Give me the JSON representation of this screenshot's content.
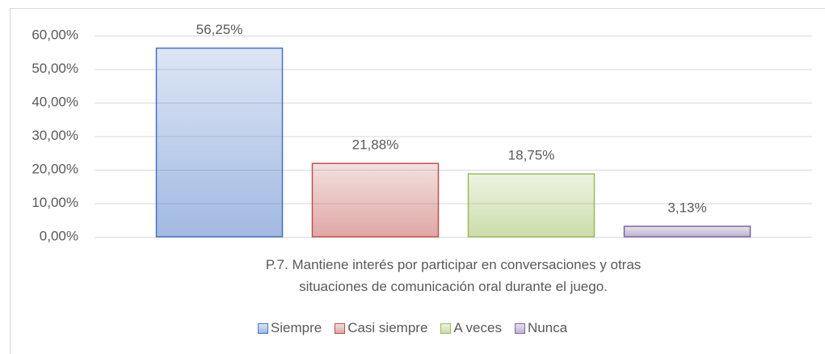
{
  "chart_data": {
    "type": "bar",
    "categories": [
      "P.7. Mantiene interés por participar en conversaciones y otras situaciones de comunicación oral durante el juego."
    ],
    "series": [
      {
        "name": "Siempre",
        "color": "#4472c4",
        "values": [
          56.25
        ],
        "value_labels": [
          "56,25%"
        ]
      },
      {
        "name": "Casi siempre",
        "color": "#c0504d",
        "values": [
          21.88
        ],
        "value_labels": [
          "21,88%"
        ]
      },
      {
        "name": "A veces",
        "color": "#9bbb59",
        "values": [
          18.75
        ],
        "value_labels": [
          "18,75%"
        ]
      },
      {
        "name": "Nunca",
        "color": "#8064a2",
        "values": [
          3.13
        ],
        "value_labels": [
          "3,13%"
        ]
      }
    ],
    "ylim": [
      0,
      60
    ],
    "yticks": [
      {
        "value": 0,
        "label": "0,00%"
      },
      {
        "value": 10,
        "label": "10,00%"
      },
      {
        "value": 20,
        "label": "20,00%"
      },
      {
        "value": 30,
        "label": "30,00%"
      },
      {
        "value": 40,
        "label": "40,00%"
      },
      {
        "value": 50,
        "label": "50,00%"
      },
      {
        "value": 60,
        "label": "60,00%"
      }
    ],
    "grid": true,
    "legend": "bottom"
  }
}
